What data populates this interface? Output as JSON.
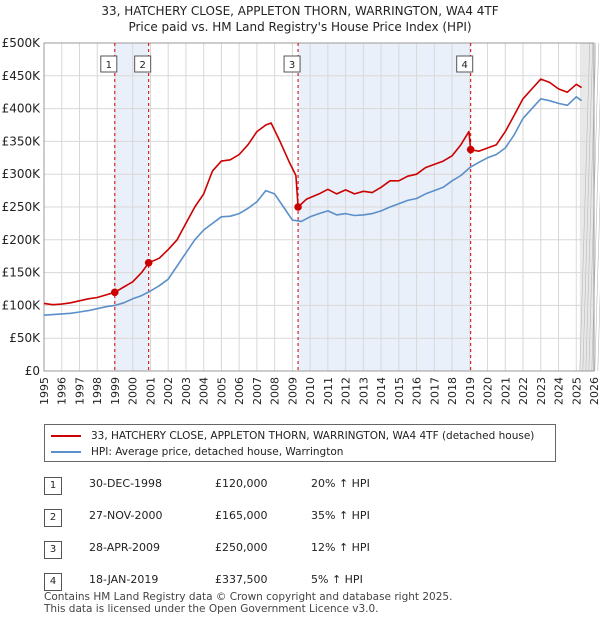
{
  "title_line1": "33, HATCHERY CLOSE, APPLETON THORN, WARRINGTON, WA4 4TF",
  "title_line2": "Price paid vs. HM Land Registry's House Price Index (HPI)",
  "colors": {
    "property": "#cc0000",
    "hpi": "#5b8fc9",
    "shade": "#dce6f5",
    "grid": "#d8d8d8"
  },
  "legend": {
    "property": "33, HATCHERY CLOSE, APPLETON THORN, WARRINGTON, WA4 4TF (detached house)",
    "hpi": "HPI: Average price, detached house, Warrington"
  },
  "transactions": [
    {
      "n": "1",
      "date": "30-DEC-1998",
      "price": "£120,000",
      "hpi": "20% ↑ HPI"
    },
    {
      "n": "2",
      "date": "27-NOV-2000",
      "price": "£165,000",
      "hpi": "35% ↑ HPI"
    },
    {
      "n": "3",
      "date": "28-APR-2009",
      "price": "£250,000",
      "hpi": "12% ↑ HPI"
    },
    {
      "n": "4",
      "date": "18-JAN-2019",
      "price": "£337,500",
      "hpi": "5% ↑ HPI"
    }
  ],
  "footer_line1": "Contains HM Land Registry data © Crown copyright and database right 2025.",
  "footer_line2": "This data is licensed under the Open Government Licence v3.0.",
  "chart_data": {
    "type": "line",
    "title": "33, HATCHERY CLOSE, APPLETON THORN, WARRINGTON, WA4 4TF",
    "subtitle": "Price paid vs. HM Land Registry's House Price Index (HPI)",
    "xlabel": "",
    "ylabel": "",
    "xlim": [
      1995,
      2026
    ],
    "ylim": [
      0,
      500000
    ],
    "x_ticks": [
      1995,
      1996,
      1997,
      1998,
      1999,
      2000,
      2001,
      2002,
      2003,
      2004,
      2005,
      2006,
      2007,
      2008,
      2009,
      2010,
      2011,
      2012,
      2013,
      2014,
      2015,
      2016,
      2017,
      2018,
      2019,
      2020,
      2021,
      2022,
      2023,
      2024,
      2025,
      2026
    ],
    "y_ticks": [
      0,
      50000,
      100000,
      150000,
      200000,
      250000,
      300000,
      350000,
      400000,
      450000,
      500000
    ],
    "y_tick_labels": [
      "£0",
      "£50K",
      "£100K",
      "£150K",
      "£200K",
      "£250K",
      "£300K",
      "£350K",
      "£400K",
      "£450K",
      "£500K"
    ],
    "grid": true,
    "legend_position": "below",
    "series": [
      {
        "name": "33, HATCHERY CLOSE, APPLETON THORN, WARRINGTON, WA4 4TF (detached house)",
        "color": "#cc0000",
        "x": [
          1995.0,
          1995.5,
          1996.0,
          1996.5,
          1997.0,
          1997.5,
          1998.0,
          1998.5,
          1998.99,
          1999.5,
          2000.0,
          2000.5,
          2000.9,
          2001.5,
          2002.0,
          2002.5,
          2003.0,
          2003.5,
          2004.0,
          2004.5,
          2005.0,
          2005.5,
          2006.0,
          2006.5,
          2007.0,
          2007.5,
          2007.8,
          2008.3,
          2008.8,
          2009.2,
          2009.32,
          2009.8,
          2010.5,
          2011.0,
          2011.5,
          2012.0,
          2012.5,
          2013.0,
          2013.5,
          2014.0,
          2014.5,
          2015.0,
          2015.5,
          2016.0,
          2016.5,
          2017.0,
          2017.5,
          2018.0,
          2018.5,
          2018.95,
          2019.05,
          2019.5,
          2020.0,
          2020.5,
          2021.0,
          2021.5,
          2022.0,
          2022.5,
          2023.0,
          2023.5,
          2024.0,
          2024.5,
          2025.0,
          2025.3
        ],
        "y": [
          103000,
          101000,
          102000,
          104000,
          107000,
          110000,
          112000,
          116000,
          120000,
          128000,
          136000,
          150000,
          165000,
          172000,
          185000,
          200000,
          225000,
          250000,
          270000,
          305000,
          320000,
          322000,
          330000,
          345000,
          365000,
          375000,
          378000,
          350000,
          320000,
          298000,
          250000,
          262000,
          270000,
          277000,
          270000,
          276000,
          270000,
          274000,
          272000,
          280000,
          290000,
          290000,
          297000,
          300000,
          310000,
          315000,
          320000,
          328000,
          345000,
          365000,
          337500,
          335000,
          340000,
          345000,
          365000,
          390000,
          415000,
          430000,
          445000,
          440000,
          430000,
          425000,
          437000,
          432000
        ]
      },
      {
        "name": "HPI: Average price, detached house, Warrington",
        "color": "#5b8fc9",
        "x": [
          1995.0,
          1995.5,
          1996.0,
          1996.5,
          1997.0,
          1997.5,
          1998.0,
          1998.5,
          1999.0,
          1999.5,
          2000.0,
          2000.5,
          2001.0,
          2001.5,
          2002.0,
          2002.5,
          2003.0,
          2003.5,
          2004.0,
          2004.5,
          2005.0,
          2005.5,
          2006.0,
          2006.5,
          2007.0,
          2007.5,
          2008.0,
          2008.5,
          2009.0,
          2009.5,
          2010.0,
          2010.5,
          2011.0,
          2011.5,
          2012.0,
          2012.5,
          2013.0,
          2013.5,
          2014.0,
          2014.5,
          2015.0,
          2015.5,
          2016.0,
          2016.5,
          2017.0,
          2017.5,
          2018.0,
          2018.5,
          2019.0,
          2019.5,
          2020.0,
          2020.5,
          2021.0,
          2021.5,
          2022.0,
          2022.5,
          2023.0,
          2023.5,
          2024.0,
          2024.5,
          2025.0,
          2025.3
        ],
        "y": [
          85000,
          86000,
          87000,
          88000,
          90000,
          92000,
          95000,
          98000,
          100000,
          104000,
          110000,
          115000,
          122000,
          130000,
          140000,
          160000,
          180000,
          200000,
          215000,
          225000,
          235000,
          236000,
          240000,
          248000,
          258000,
          275000,
          270000,
          250000,
          230000,
          228000,
          235000,
          240000,
          244000,
          238000,
          240000,
          237000,
          238000,
          240000,
          244000,
          250000,
          255000,
          260000,
          263000,
          270000,
          275000,
          280000,
          290000,
          298000,
          310000,
          318000,
          325000,
          330000,
          340000,
          360000,
          385000,
          400000,
          415000,
          412000,
          408000,
          405000,
          418000,
          412000
        ]
      }
    ],
    "markers": [
      {
        "label": "1",
        "x": 1998.99,
        "y": 120000
      },
      {
        "label": "2",
        "x": 2000.9,
        "y": 165000
      },
      {
        "label": "3",
        "x": 2009.32,
        "y": 250000
      },
      {
        "label": "4",
        "x": 2019.05,
        "y": 337500
      }
    ],
    "shaded_spans": [
      [
        1998.99,
        2000.9
      ],
      [
        2009.32,
        2019.05
      ]
    ],
    "forecast_from": 2025.2
  }
}
